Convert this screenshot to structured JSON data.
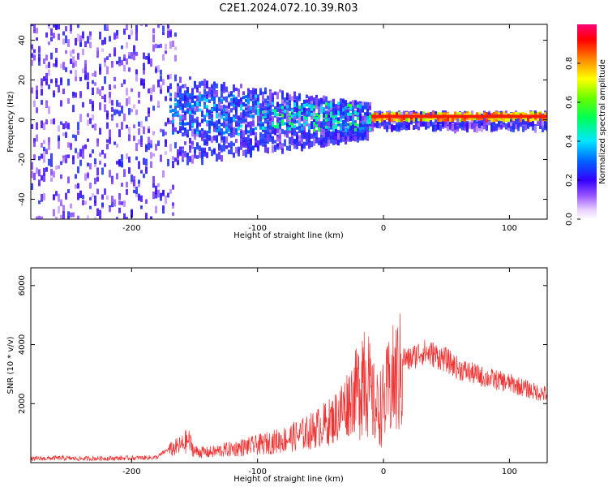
{
  "title": "C2E1.2024.072.10.39.R03",
  "chart_data": [
    {
      "type": "heatmap",
      "xlabel": "Height of straight line (km)",
      "ylabel": "Frequency (Hz)",
      "xlim": [
        -280,
        130
      ],
      "ylim": [
        -50,
        48
      ],
      "xticks": [
        -200,
        -100,
        0,
        100
      ],
      "yticks": [
        -40,
        -20,
        0,
        20,
        40
      ],
      "colorbar": {
        "label": "Normalized spectral amplitude",
        "range": [
          0.0,
          1.0
        ],
        "ticks": [
          0.0,
          0.2,
          0.4,
          0.6,
          0.8
        ]
      }
    },
    {
      "type": "line",
      "xlabel": "Height of straight line (km)",
      "ylabel": "SNR (10 * v/v)",
      "xlim": [
        -280,
        130
      ],
      "ylim": [
        0,
        6600
      ],
      "xticks": [
        -200,
        -100,
        0,
        100
      ],
      "yticks": [
        2000,
        4000,
        6000
      ],
      "color": "#ee3333",
      "series": [
        {
          "x": [
            -280,
            -260,
            -240,
            -220,
            -200,
            -180,
            -170,
            -160,
            -155,
            -150,
            -140,
            -120,
            -100,
            -80,
            -60,
            -40,
            -30,
            -20,
            -15,
            -10,
            -5,
            0,
            5,
            10,
            15,
            20,
            30,
            40,
            50,
            60,
            80,
            100,
            120,
            130
          ],
          "y": [
            150,
            180,
            160,
            170,
            180,
            200,
            500,
            700,
            900,
            450,
            400,
            550,
            700,
            900,
            1200,
            1700,
            2300,
            3000,
            4200,
            2600,
            2200,
            2400,
            3100,
            3500,
            3700,
            3600,
            3900,
            3800,
            3600,
            3300,
            3000,
            2800,
            2500,
            2400
          ]
        }
      ]
    }
  ]
}
